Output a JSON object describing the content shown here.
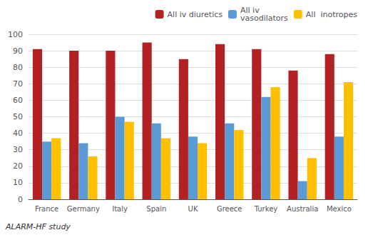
{
  "chart_data": {
    "type": "bar",
    "categories": [
      "France",
      "Germany",
      "Italy",
      "Spain",
      "UK",
      "Greece",
      "Turkey",
      "Australia",
      "Mexico"
    ],
    "series": [
      {
        "name": "All iv diuretics",
        "color": "#b22222",
        "values": [
          91,
          90,
          90,
          95,
          85,
          94,
          91,
          78,
          88
        ]
      },
      {
        "name": "All iv\nvasodilators",
        "color": "#5b9bd5",
        "values": [
          35,
          34,
          50,
          46,
          38,
          46,
          62,
          11,
          38
        ]
      },
      {
        "name": "All  inotropes",
        "color": "#ffc000",
        "values": [
          37,
          26,
          47,
          37,
          34,
          42,
          68,
          25,
          71
        ]
      }
    ],
    "ylim": [
      0,
      100
    ],
    "yticks": [
      0,
      10,
      20,
      30,
      40,
      50,
      60,
      70,
      80,
      90,
      100
    ],
    "grid": true,
    "legend": "upper right",
    "annotations": [
      "ALARM-HF study"
    ]
  }
}
